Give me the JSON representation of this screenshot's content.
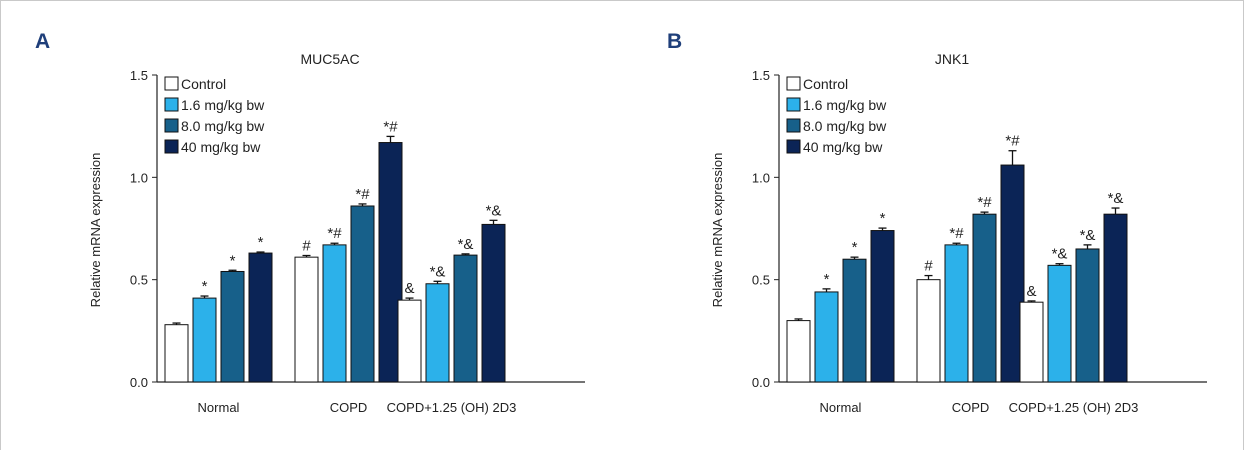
{
  "panels": [
    {
      "letter": "A"
    },
    {
      "letter": "B"
    }
  ],
  "legend": {
    "entries": [
      "Control",
      "1.6 mg/kg bw",
      "8.0 mg/kg bw",
      "40 mg/kg bw"
    ],
    "colors": [
      "#ffffff",
      "#2cb1ea",
      "#17608a",
      "#0b2456"
    ]
  },
  "chart_data": [
    {
      "type": "bar",
      "title": "MUC5AC",
      "ylabel": "Relative mRNA expression",
      "xlabel": "",
      "ylim": [
        0,
        1.5
      ],
      "yticks": [
        "0.0",
        "0.5",
        "1.0",
        "1.5"
      ],
      "categories": [
        "Normal",
        "COPD",
        "COPD+1.25 (OH) 2D3"
      ],
      "series": [
        {
          "name": "Control",
          "values": [
            0.28,
            0.61,
            0.4
          ],
          "errors": [
            0.008,
            0.008,
            0.01
          ],
          "annotations": [
            "",
            "#",
            "&"
          ]
        },
        {
          "name": "1.6 mg/kg bw",
          "values": [
            0.41,
            0.67,
            0.48
          ],
          "errors": [
            0.01,
            0.008,
            0.012
          ],
          "annotations": [
            "*",
            "*#",
            "*&"
          ]
        },
        {
          "name": "8.0 mg/kg bw",
          "values": [
            0.54,
            0.86,
            0.62
          ],
          "errors": [
            0.006,
            0.01,
            0.006
          ],
          "annotations": [
            "*",
            "*#",
            "*&"
          ]
        },
        {
          "name": "40 mg/kg bw",
          "values": [
            0.63,
            1.17,
            0.77
          ],
          "errors": [
            0.005,
            0.03,
            0.02
          ],
          "annotations": [
            "*",
            "*#",
            "*&"
          ]
        }
      ]
    },
    {
      "type": "bar",
      "title": "JNK1",
      "ylabel": "Relative mRNA expression",
      "xlabel": "",
      "ylim": [
        0,
        1.5
      ],
      "yticks": [
        "0.0",
        "0.5",
        "1.0",
        "1.5"
      ],
      "categories": [
        "Normal",
        "COPD",
        "COPD+1.25 (OH) 2D3"
      ],
      "series": [
        {
          "name": "Control",
          "values": [
            0.3,
            0.5,
            0.39
          ],
          "errors": [
            0.008,
            0.02,
            0.006
          ],
          "annotations": [
            "",
            "#",
            "&"
          ]
        },
        {
          "name": "1.6 mg/kg bw",
          "values": [
            0.44,
            0.67,
            0.57
          ],
          "errors": [
            0.015,
            0.008,
            0.008
          ],
          "annotations": [
            "*",
            "*#",
            "*&"
          ]
        },
        {
          "name": "8.0 mg/kg bw",
          "values": [
            0.6,
            0.82,
            0.65
          ],
          "errors": [
            0.01,
            0.01,
            0.02
          ],
          "annotations": [
            "*",
            "*#",
            "*&"
          ]
        },
        {
          "name": "40 mg/kg bw",
          "values": [
            0.74,
            1.06,
            0.82
          ],
          "errors": [
            0.012,
            0.07,
            0.03
          ],
          "annotations": [
            "*",
            "*#",
            "*&"
          ]
        }
      ]
    }
  ]
}
